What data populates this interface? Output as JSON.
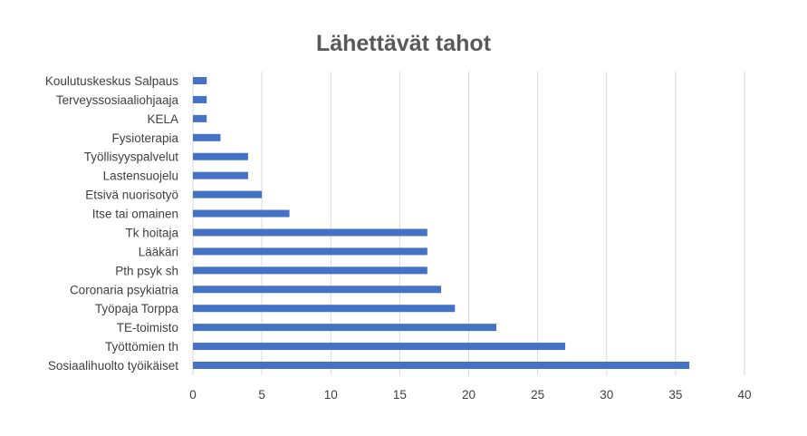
{
  "chart_data": {
    "type": "bar",
    "orientation": "horizontal",
    "title": "Lähettävät tahot",
    "xlabel": "",
    "ylabel": "",
    "xlim": [
      0,
      40
    ],
    "x_ticks": [
      0,
      5,
      10,
      15,
      20,
      25,
      30,
      35,
      40
    ],
    "grid": true,
    "legend": "none",
    "bar_color": "#4472C4",
    "categories": [
      "Koulutuskeskus Salpaus",
      "Terveyssosiaaliohjaaja",
      "KELA",
      "Fysioterapia",
      "Työllisyyspalvelut",
      "Lastensuojelu",
      "Etsivä nuorisotyö",
      "Itse tai omainen",
      "Tk hoitaja",
      "Lääkäri",
      "Pth psyk sh",
      "Coronaria psykiatria",
      "Työpaja Torppa",
      "TE-toimisto",
      "Työttömien th",
      "Sosiaalihuolto työikäiset"
    ],
    "values": [
      1,
      1,
      1,
      2,
      4,
      4,
      5,
      7,
      17,
      17,
      17,
      18,
      19,
      22,
      27,
      36
    ]
  }
}
